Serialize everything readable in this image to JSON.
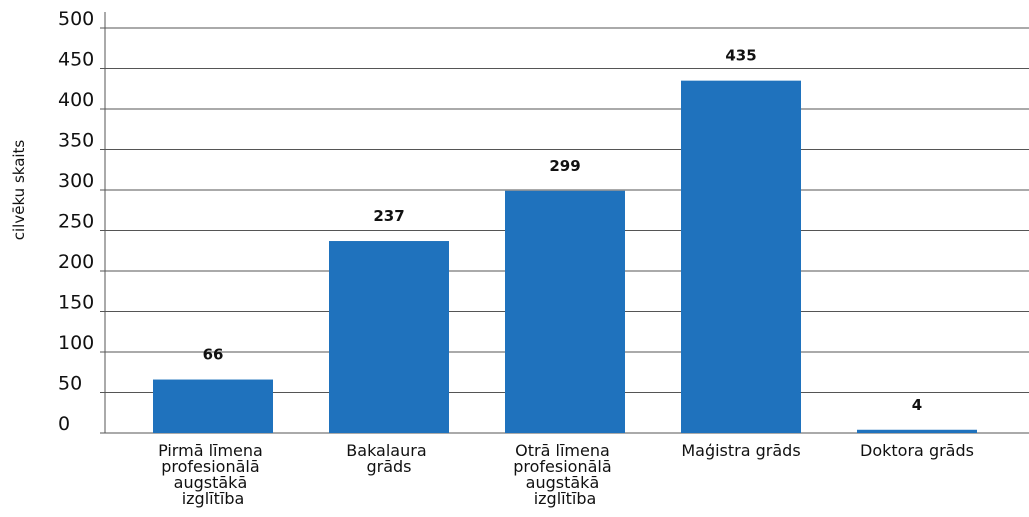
{
  "chart_data": {
    "type": "bar",
    "y_label": "cilvēku skaits",
    "categories": [
      "Pirmā līmena profesionālā augstākā izglītība",
      "Bakalaura grāds",
      "Otrā līmena profesionālā augstākā izglītība",
      "Maģistra grāds",
      "Doktora grāds"
    ],
    "values": [
      66,
      237,
      299,
      435,
      4
    ],
    "color": "#1f72bd",
    "ylim": [
      0,
      500
    ],
    "yticks": [
      0,
      50,
      100,
      150,
      200,
      250,
      300,
      350,
      400,
      450,
      500
    ],
    "grid": true
  }
}
